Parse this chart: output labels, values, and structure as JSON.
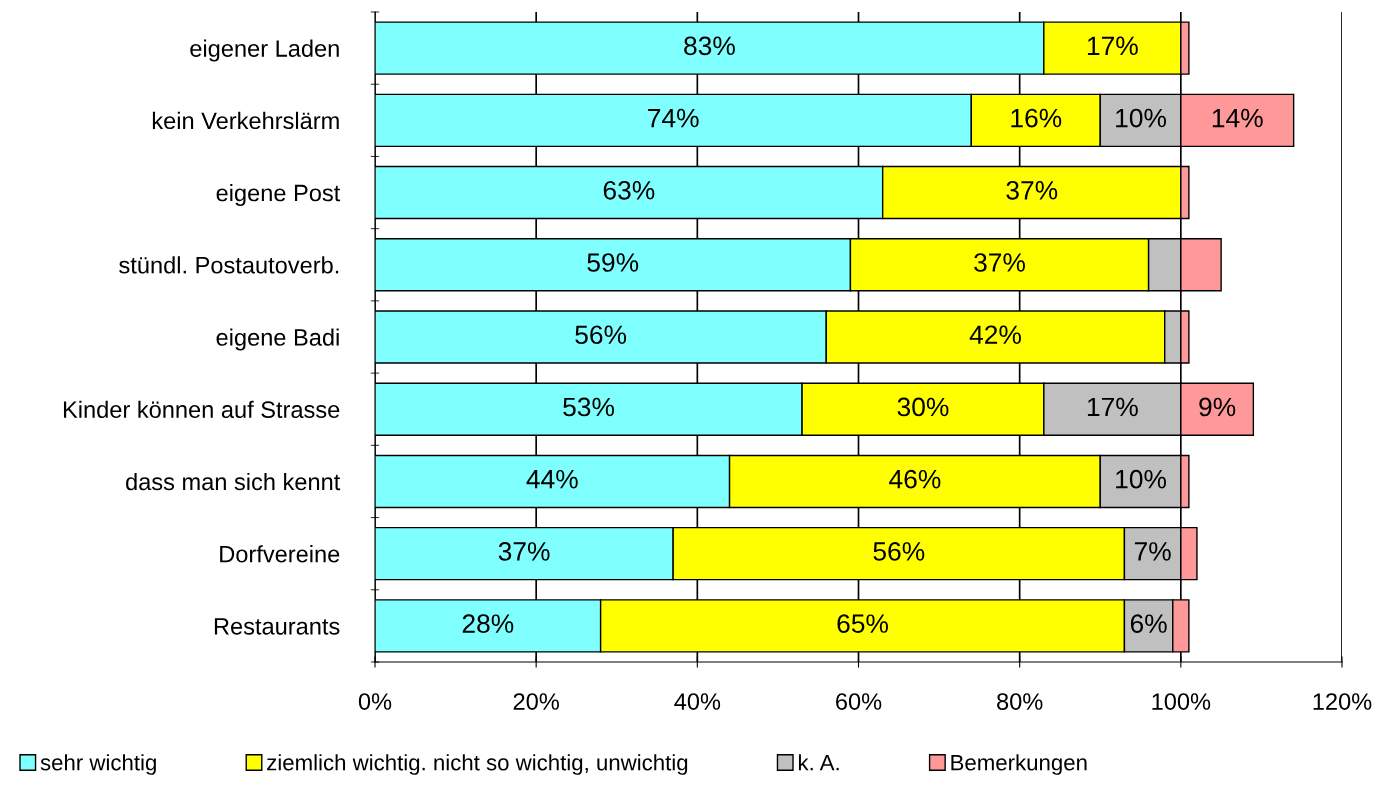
{
  "chart_data": {
    "type": "bar",
    "orientation": "horizontal",
    "stacked": true,
    "categories": [
      "eigener Laden",
      "kein Verkehrslärm",
      "eigene Post",
      "stündl. Postautoverb.",
      "eigene Badi",
      "Kinder können auf Strasse",
      "dass man sich kennt",
      "Dorfvereine",
      "Restaurants"
    ],
    "series": [
      {
        "name": "sehr wichtig",
        "color": "#80ffff",
        "values": [
          83,
          74,
          63,
          59,
          56,
          53,
          44,
          37,
          28
        ],
        "value_labels": [
          "83%",
          "74%",
          "63%",
          "59%",
          "56%",
          "53%",
          "44%",
          "37%",
          "28%"
        ]
      },
      {
        "name": "ziemlich wichtig. nicht so wichtig, unwichtig",
        "color": "#ffff00",
        "values": [
          17,
          16,
          37,
          37,
          42,
          30,
          46,
          56,
          65
        ],
        "value_labels": [
          "17%",
          "16%",
          "37%",
          "37%",
          "42%",
          "30%",
          "46%",
          "56%",
          "65%"
        ]
      },
      {
        "name": "k. A.",
        "color": "#c0c0c0",
        "values": [
          0,
          10,
          0,
          4,
          2,
          17,
          10,
          7,
          6
        ],
        "value_labels": [
          null,
          "10%",
          null,
          null,
          null,
          "17%",
          "10%",
          "7%",
          "6%"
        ]
      },
      {
        "name": "Bemerkungen",
        "color": "#ff9999",
        "values": [
          1,
          14,
          1,
          5,
          1,
          9,
          1,
          2,
          2
        ],
        "value_labels": [
          null,
          "14%",
          null,
          null,
          null,
          "9%",
          null,
          null,
          null
        ]
      }
    ],
    "xlim": [
      0,
      120
    ],
    "xticks": [
      {
        "value": 0,
        "label": "0%"
      },
      {
        "value": 20,
        "label": "20%"
      },
      {
        "value": 40,
        "label": "40%"
      },
      {
        "value": 60,
        "label": "60%"
      },
      {
        "value": 80,
        "label": "80%"
      },
      {
        "value": 100,
        "label": "100%"
      },
      {
        "value": 120,
        "label": "120%"
      }
    ],
    "grid": "x",
    "legend": "bottom"
  }
}
